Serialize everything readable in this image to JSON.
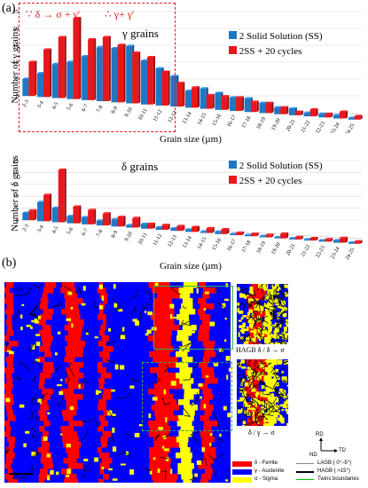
{
  "panels": {
    "a_label": "(a)",
    "b_label": "(b)"
  },
  "formula": {
    "left": "∵ δ → σ + γ'",
    "right": "∴ γ+ γ'"
  },
  "legend": {
    "series1": "2 Solid Solution (SS)",
    "series2": "2SS + 20 cycles",
    "series1_color": "#1f77c4",
    "series2_color": "#e8171d"
  },
  "chart_data": [
    {
      "type": "bar",
      "title": "γ grains",
      "xlabel": "Grain size (µm)",
      "ylabel": "Number of γ grains",
      "ylim": [
        0,
        25
      ],
      "yticks": [
        0,
        5,
        10,
        15,
        20,
        25
      ],
      "categories": [
        "2-3",
        "3-4",
        "4-5",
        "5-6",
        "6-7",
        "7-8",
        "8-9",
        "9-10",
        "10-11",
        "11-12",
        "12-13",
        "13-14",
        "14-15",
        "15-16",
        "16-17",
        "17-18",
        "18-19",
        "19-20",
        "20-21",
        "21-22",
        "22-23",
        "23-24",
        "24-25"
      ],
      "series": [
        {
          "name": "2 Solid Solution (SS)",
          "values": [
            5,
            7,
            10,
            11,
            13,
            16,
            16,
            17,
            13,
            11,
            9,
            5,
            6,
            5,
            4,
            4,
            3,
            2,
            2,
            1,
            1,
            1,
            0.5
          ]
        },
        {
          "name": "2SS + 20 cycles",
          "values": [
            10,
            14,
            18,
            24,
            18,
            19,
            17,
            15,
            14,
            10,
            7,
            6,
            4,
            4,
            4,
            3,
            3,
            2,
            1,
            2,
            1,
            2,
            1
          ]
        }
      ]
    },
    {
      "type": "bar",
      "title": "δ grains",
      "xlabel": "Grain size (µm)",
      "ylabel": "Number of δ grains",
      "ylim": [
        0,
        25
      ],
      "yticks": [
        0,
        5,
        10,
        15,
        20,
        25
      ],
      "categories": [
        "2-3",
        "3-4",
        "4-5",
        "5-6",
        "6-7",
        "7-8",
        "8-9",
        "9-10",
        "10-11",
        "11-12",
        "12-13",
        "13-14",
        "14-15",
        "15-16",
        "16-17",
        "17-18",
        "18-19",
        "19-20",
        "20-21",
        "21-22",
        "22-23",
        "23-24",
        "24-25"
      ],
      "series": [
        {
          "name": "2 Solid Solution (SS)",
          "values": [
            3,
            8,
            6,
            3,
            3,
            2,
            3,
            1,
            2,
            1,
            1,
            1,
            0.5,
            1,
            0.5,
            0.5,
            0.5,
            0.5,
            0.5,
            0.5,
            0.5,
            1,
            0.5
          ]
        },
        {
          "name": "2SS + 20 cycles",
          "values": [
            4,
            11,
            22,
            7,
            6,
            5,
            4,
            4,
            2,
            2,
            2,
            2,
            2,
            2,
            1,
            1,
            1,
            2,
            1,
            1,
            1,
            2,
            1
          ]
        }
      ]
    }
  ],
  "map": {
    "inset1_caption": "HAGB δ / δ → σ",
    "inset2_caption": "δ / γ → σ",
    "axes": {
      "rd": "RD",
      "nd": "ND",
      "td": "TD"
    },
    "scale_bar": "25 um",
    "phase_legend": [
      {
        "label": "δ - Ferrite",
        "color": "#ff0000"
      },
      {
        "label": "γ - Austenite",
        "color": "#0000ff"
      },
      {
        "label": "σ - Sigma",
        "color": "#ffff00"
      }
    ],
    "boundary_legend": [
      {
        "label": "LAGB ( 0°–5°)",
        "color": "#888888"
      },
      {
        "label": "HAGB ( >15°)",
        "color": "#000000"
      },
      {
        "label": "Twins boundaries",
        "color": "#00cc00"
      }
    ]
  }
}
